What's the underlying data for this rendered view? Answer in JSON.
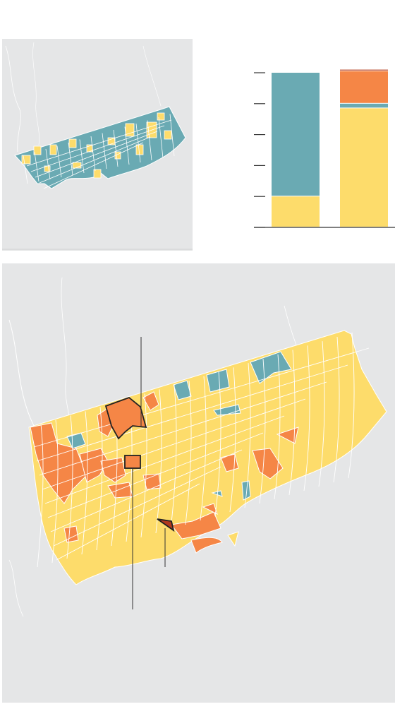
{
  "colors": {
    "background": "#ffffff",
    "water": "#e5e6e7",
    "land_outline": "#ffffff",
    "teal": "#6aaab3",
    "yellow": "#fddc6b",
    "orange": "#f58646",
    "dark_red": "#b23a1e",
    "axis": "#333333",
    "river": "#ffffff"
  },
  "chart_data": {
    "type": "bar",
    "stacked": true,
    "categories": [
      "",
      ""
    ],
    "series": [
      {
        "color": "#fddc6b",
        "values": [
          20,
          77
        ]
      },
      {
        "color": "#6aaab3",
        "values": [
          80,
          3
        ]
      },
      {
        "color": "#f58646",
        "values": [
          0,
          21
        ]
      },
      {
        "color": "#b23a1e",
        "values": [
          0,
          1
        ]
      }
    ],
    "ylim": [
      0,
      100
    ],
    "yticks": [
      0,
      20,
      40,
      60,
      80,
      100
    ],
    "grid": false,
    "legend": "none"
  },
  "maps": {
    "overview": {
      "dominant_color": "teal",
      "secondary_color": "yellow"
    },
    "detail": {
      "dominant_color": "yellow",
      "secondary_color": "orange",
      "highlighted_areas": 3
    }
  }
}
